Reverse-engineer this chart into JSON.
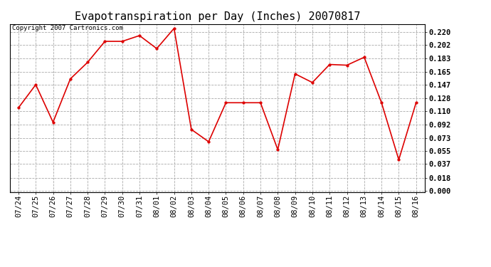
{
  "title": "Evapotranspiration per Day (Inches) 20070817",
  "copyright_text": "Copyright 2007 Cartronics.com",
  "x_labels": [
    "07/24",
    "07/25",
    "07/26",
    "07/27",
    "07/28",
    "07/29",
    "07/30",
    "07/31",
    "08/01",
    "08/02",
    "08/03",
    "08/04",
    "08/05",
    "08/06",
    "08/07",
    "08/08",
    "08/09",
    "08/10",
    "08/11",
    "08/12",
    "08/13",
    "08/14",
    "08/15",
    "08/16"
  ],
  "y_values": [
    0.115,
    0.147,
    0.095,
    0.155,
    0.178,
    0.207,
    0.207,
    0.215,
    0.197,
    0.225,
    0.085,
    0.068,
    0.122,
    0.122,
    0.122,
    0.057,
    0.162,
    0.15,
    0.175,
    0.174,
    0.185,
    0.122,
    0.043,
    0.122
  ],
  "line_color": "#dd0000",
  "marker": "o",
  "marker_size": 2.5,
  "line_width": 1.2,
  "y_ticks": [
    0.0,
    0.018,
    0.037,
    0.055,
    0.073,
    0.092,
    0.11,
    0.128,
    0.147,
    0.165,
    0.183,
    0.202,
    0.22
  ],
  "ylim": [
    -0.002,
    0.231
  ],
  "bg_color": "#ffffff",
  "plot_bg_color": "#ffffff",
  "grid_color": "#aaaaaa",
  "title_fontsize": 11,
  "tick_fontsize": 7.5,
  "copyright_fontsize": 6.5
}
